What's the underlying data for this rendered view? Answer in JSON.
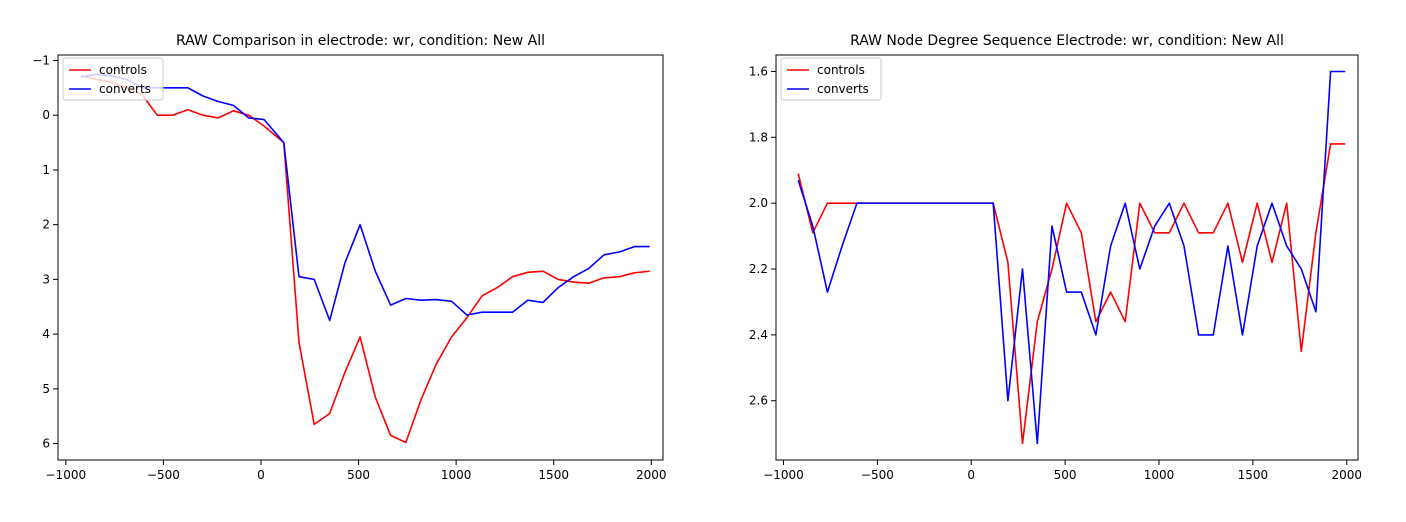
{
  "chart_data": [
    {
      "type": "line",
      "title": "RAW Comparison in electrode: wr, condition: New All",
      "xlabel": "",
      "ylabel": "",
      "xlim": [
        -1040,
        2060
      ],
      "ylim": [
        -1.1,
        6.3
      ],
      "y_inverted": true,
      "xticks": [
        -1000,
        -500,
        0,
        500,
        1000,
        1500,
        2000
      ],
      "xtick_labels": [
        "−1000",
        "−500",
        "0",
        "500",
        "1000",
        "1500",
        "2000"
      ],
      "yticks": [
        -1,
        0,
        1,
        2,
        3,
        4,
        5,
        6
      ],
      "ytick_labels": [
        "−1",
        "0",
        "1",
        "2",
        "3",
        "4",
        "5",
        "6"
      ],
      "grid": false,
      "legend_position": "upper-left",
      "series": [
        {
          "name": "controls",
          "color": "#ff0000",
          "x": [
            -922,
            -844,
            -766,
            -688,
            -609,
            -563,
            -531,
            -453,
            -375,
            -297,
            -219,
            -141,
            -63,
            16,
            117,
            195,
            273,
            352,
            430,
            508,
            586,
            664,
            742,
            820,
            898,
            977,
            1055,
            1133,
            1211,
            1289,
            1367,
            1445,
            1523,
            1602,
            1680,
            1758,
            1836,
            1914,
            1992
          ],
          "values": [
            -0.72,
            -0.66,
            -0.6,
            -0.5,
            -0.38,
            -0.15,
            0.0,
            0.0,
            -0.1,
            0.0,
            0.05,
            -0.08,
            0.0,
            0.2,
            0.5,
            4.15,
            5.65,
            5.45,
            4.7,
            4.05,
            5.15,
            5.85,
            5.98,
            5.2,
            4.55,
            4.05,
            3.7,
            3.3,
            3.15,
            2.95,
            2.87,
            2.85,
            3.0,
            3.05,
            3.07,
            2.97,
            2.95,
            2.88,
            2.85
          ]
        },
        {
          "name": "converts",
          "color": "#0000ff",
          "x": [
            -922,
            -844,
            -766,
            -688,
            -609,
            -531,
            -453,
            -375,
            -297,
            -219,
            -141,
            -63,
            16,
            117,
            195,
            273,
            352,
            430,
            508,
            586,
            664,
            742,
            820,
            898,
            977,
            1055,
            1133,
            1211,
            1289,
            1367,
            1445,
            1523,
            1602,
            1680,
            1758,
            1836,
            1914,
            1992
          ],
          "values": [
            -0.7,
            -0.75,
            -0.72,
            -0.65,
            -0.5,
            -0.5,
            -0.5,
            -0.5,
            -0.35,
            -0.25,
            -0.18,
            0.05,
            0.08,
            0.5,
            2.95,
            3.0,
            3.75,
            2.7,
            2.0,
            2.85,
            3.47,
            3.35,
            3.38,
            3.37,
            3.4,
            3.65,
            3.6,
            3.6,
            3.6,
            3.38,
            3.42,
            3.15,
            2.95,
            2.8,
            2.55,
            2.5,
            2.4,
            2.4
          ]
        }
      ]
    },
    {
      "type": "line",
      "title": "RAW Node Degree Sequence Electrode: wr, condition: New All",
      "xlabel": "",
      "ylabel": "",
      "xlim": [
        -1040,
        2060
      ],
      "ylim": [
        1.55,
        2.78
      ],
      "y_inverted": true,
      "xticks": [
        -1000,
        -500,
        0,
        500,
        1000,
        1500,
        2000
      ],
      "xtick_labels": [
        "−1000",
        "−500",
        "0",
        "500",
        "1000",
        "1500",
        "2000"
      ],
      "yticks": [
        1.6,
        1.8,
        2.0,
        2.2,
        2.4,
        2.6
      ],
      "ytick_labels": [
        "1.6",
        "1.8",
        "2.0",
        "2.2",
        "2.4",
        "2.6"
      ],
      "grid": false,
      "legend_position": "upper-left",
      "series": [
        {
          "name": "controls",
          "color": "#ff0000",
          "x": [
            -922,
            -844,
            -766,
            -688,
            -609,
            -531,
            -453,
            -375,
            -297,
            -219,
            -141,
            -63,
            16,
            117,
            195,
            273,
            352,
            430,
            508,
            586,
            664,
            742,
            820,
            898,
            977,
            1055,
            1133,
            1211,
            1289,
            1367,
            1445,
            1523,
            1602,
            1680,
            1758,
            1836,
            1914,
            1992
          ],
          "values": [
            1.91,
            2.09,
            2.0,
            2.0,
            2.0,
            2.0,
            2.0,
            2.0,
            2.0,
            2.0,
            2.0,
            2.0,
            2.0,
            2.0,
            2.18,
            2.73,
            2.36,
            2.2,
            2.0,
            2.09,
            2.36,
            2.27,
            2.36,
            2.0,
            2.09,
            2.09,
            2.0,
            2.09,
            2.09,
            2.0,
            2.18,
            2.0,
            2.18,
            2.0,
            2.45,
            2.09,
            1.82,
            1.82
          ]
        },
        {
          "name": "converts",
          "color": "#0000ff",
          "x": [
            -922,
            -844,
            -766,
            -688,
            -609,
            -531,
            -453,
            -375,
            -297,
            -219,
            -141,
            -63,
            16,
            117,
            195,
            273,
            352,
            430,
            508,
            586,
            664,
            742,
            820,
            898,
            977,
            1055,
            1133,
            1211,
            1289,
            1367,
            1445,
            1523,
            1602,
            1680,
            1758,
            1836,
            1914,
            1992
          ],
          "values": [
            1.93,
            2.07,
            2.27,
            2.13,
            2.0,
            2.0,
            2.0,
            2.0,
            2.0,
            2.0,
            2.0,
            2.0,
            2.0,
            2.0,
            2.6,
            2.2,
            2.73,
            2.07,
            2.27,
            2.27,
            2.4,
            2.13,
            2.0,
            2.2,
            2.07,
            2.0,
            2.13,
            2.4,
            2.4,
            2.13,
            2.4,
            2.13,
            2.0,
            2.13,
            2.2,
            2.33,
            1.6,
            1.6
          ]
        }
      ]
    }
  ]
}
